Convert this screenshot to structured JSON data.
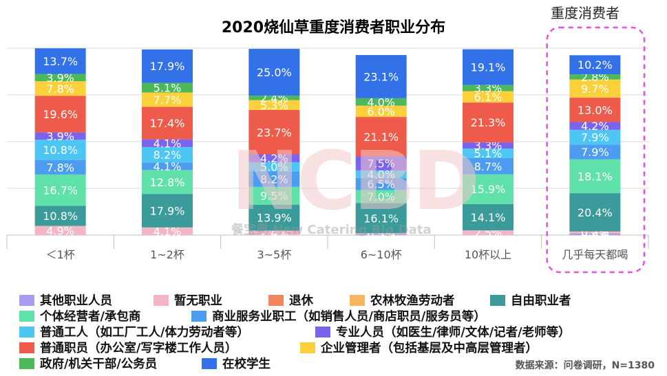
{
  "title": "2020烧仙草重度消费者职业分布",
  "highlight_label": "重度消费者",
  "source": "数据来源：问卷调研，N=1380",
  "watermark": "NCBD",
  "watermark_sub": "餐宝典 New Catering Big Data",
  "legend": [
    {
      "name": "其他职业人员",
      "color": "#a79cf2"
    },
    {
      "name": "暂无职业",
      "color": "#f3b6c6"
    },
    {
      "name": "退休",
      "color": "#f2855b"
    },
    {
      "name": "农林牧渔劳动者",
      "color": "#f8b65c"
    },
    {
      "name": "自由职业者",
      "color": "#3a9b9a"
    },
    {
      "name": "个体经营者/承包商",
      "color": "#5fe1a9"
    },
    {
      "name": "商业服务业职工（如销售人员/商店职员/服务员等）",
      "color": "#4c9cf0"
    },
    {
      "name": "普通工人（如工厂工人/体力劳动者等）",
      "color": "#4dc6f4"
    },
    {
      "name": "专业人员（如医生/律师/文体/记者/老师等）",
      "color": "#7b63ee"
    },
    {
      "name": "普通职员（办公室/写字楼工作人员）",
      "color": "#ef5b4a"
    },
    {
      "name": "企业管理者（包括基层及中高层管理者）",
      "color": "#fcd03a"
    },
    {
      "name": "政府/机关干部/公务员",
      "color": "#4cb85a"
    },
    {
      "name": "在校学生",
      "color": "#3271e8"
    }
  ],
  "chart_data": {
    "type": "bar",
    "stacked": true,
    "title": "2020烧仙草重度消费者职业分布",
    "xlabel": "",
    "ylabel": "",
    "ylim": [
      0,
      100
    ],
    "grid": true,
    "legend_position": "bottom",
    "categories": [
      "＜1杯",
      "1~2杯",
      "3~5杯",
      "6~10杯",
      "10杯以上",
      "几乎每天都喝"
    ],
    "series": [
      {
        "name": "其他职业人员",
        "values": [
          0.0,
          0.0,
          0.0,
          0.5,
          0.0,
          0.9
        ]
      },
      {
        "name": "暂无职业",
        "values": [
          4.9,
          4.1,
          2.4,
          0.5,
          2.5,
          0.9
        ]
      },
      {
        "name": "退休",
        "values": [
          0.0,
          0.0,
          0.0,
          0.0,
          0.0,
          0.2
        ]
      },
      {
        "name": "农林牧渔劳动者",
        "values": [
          0.0,
          0.0,
          0.0,
          0.0,
          0.0,
          0.0
        ]
      },
      {
        "name": "自由职业者",
        "values": [
          10.8,
          17.9,
          13.9,
          16.1,
          14.1,
          20.4
        ]
      },
      {
        "name": "个体经营者/承包商",
        "values": [
          16.7,
          12.8,
          9.5,
          7.0,
          15.9,
          18.1
        ]
      },
      {
        "name": "商业服务业职工（如销售人员/商店职员/服务员等）",
        "values": [
          7.8,
          4.1,
          8.2,
          6.5,
          8.7,
          7.9
        ]
      },
      {
        "name": "普通工人（如工厂工人/体力劳动者等）",
        "values": [
          10.8,
          8.2,
          5.0,
          4.0,
          5.1,
          7.9
        ]
      },
      {
        "name": "专业人员（如医生/律师/文体/记者/老师等）",
        "values": [
          3.9,
          4.1,
          4.2,
          7.5,
          3.3,
          4.2
        ]
      },
      {
        "name": "普通职员（办公室/写字楼工作人员）",
        "values": [
          19.6,
          17.4,
          23.7,
          21.1,
          21.3,
          13.0
        ]
      },
      {
        "name": "企业管理者（包括基层及中高层管理者）",
        "values": [
          7.8,
          7.7,
          5.3,
          6.0,
          6.1,
          9.7
        ]
      },
      {
        "name": "政府/机关干部/公务员",
        "values": [
          3.9,
          5.1,
          2.4,
          4.0,
          3.3,
          2.8
        ]
      },
      {
        "name": "在校学生",
        "values": [
          13.7,
          17.9,
          25.0,
          23.1,
          19.1,
          10.2
        ]
      }
    ]
  }
}
